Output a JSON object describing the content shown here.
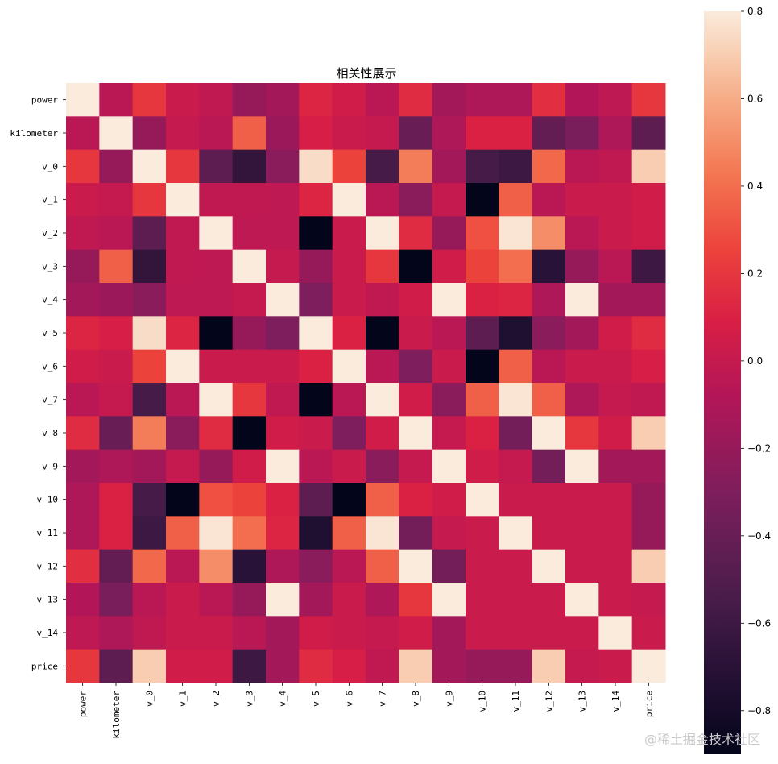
{
  "chart_data": {
    "type": "heatmap",
    "title": "相关性展示",
    "labels": [
      "power",
      "kilometer",
      "v_0",
      "v_1",
      "v_2",
      "v_3",
      "v_4",
      "v_5",
      "v_6",
      "v_7",
      "v_8",
      "v_9",
      "v_10",
      "v_11",
      "v_12",
      "v_13",
      "v_14",
      "price"
    ],
    "vmin": -0.9,
    "vmax": 0.8,
    "colorbar_ticks": [
      0.8,
      0.6,
      0.4,
      0.2,
      0.0,
      -0.2,
      -0.4,
      -0.6,
      -0.8
    ],
    "colorbar_tick_labels": [
      "0.8",
      "0.6",
      "0.4",
      "0.2",
      "0.0",
      "−0.2",
      "−0.4",
      "−0.6",
      "−0.8"
    ],
    "colormap": "rocket",
    "matrix": [
      [
        0.8,
        -0.05,
        0.2,
        0.02,
        -0.02,
        -0.2,
        -0.15,
        0.12,
        0.05,
        -0.05,
        0.15,
        -0.15,
        -0.1,
        -0.1,
        0.16,
        -0.08,
        -0.03,
        0.2
      ],
      [
        -0.05,
        0.8,
        -0.2,
        0.0,
        -0.05,
        0.35,
        -0.18,
        0.08,
        0.02,
        0.0,
        -0.4,
        -0.1,
        0.1,
        0.1,
        -0.42,
        -0.32,
        -0.1,
        -0.45
      ],
      [
        0.2,
        -0.2,
        0.8,
        0.2,
        -0.45,
        -0.65,
        -0.25,
        0.75,
        0.25,
        -0.55,
        0.45,
        -0.15,
        -0.55,
        -0.6,
        0.38,
        -0.05,
        -0.02,
        0.7
      ],
      [
        0.02,
        0.0,
        0.2,
        0.8,
        -0.02,
        -0.02,
        -0.03,
        0.12,
        0.8,
        -0.05,
        -0.25,
        0.0,
        -0.9,
        0.35,
        -0.05,
        0.02,
        0.02,
        0.05
      ],
      [
        -0.02,
        -0.05,
        -0.45,
        -0.02,
        0.8,
        -0.03,
        -0.03,
        -0.9,
        0.02,
        0.8,
        0.15,
        -0.2,
        0.3,
        0.78,
        0.5,
        -0.05,
        0.02,
        0.05
      ],
      [
        -0.2,
        0.35,
        -0.65,
        -0.02,
        -0.03,
        0.8,
        0.0,
        -0.2,
        0.02,
        0.2,
        -0.9,
        0.05,
        0.25,
        0.4,
        -0.7,
        -0.2,
        -0.05,
        -0.6
      ],
      [
        -0.15,
        -0.18,
        -0.25,
        -0.03,
        -0.03,
        0.0,
        0.8,
        -0.3,
        0.02,
        -0.02,
        0.05,
        0.8,
        0.1,
        0.12,
        -0.1,
        0.8,
        -0.15,
        -0.15
      ],
      [
        0.12,
        0.08,
        0.75,
        0.12,
        -0.9,
        -0.2,
        -0.3,
        0.8,
        0.1,
        -0.9,
        0.02,
        -0.05,
        -0.45,
        -0.75,
        -0.25,
        -0.15,
        0.05,
        0.15
      ],
      [
        0.05,
        0.02,
        0.25,
        0.8,
        0.02,
        0.02,
        0.02,
        0.1,
        0.8,
        -0.05,
        -0.3,
        0.02,
        -0.9,
        0.35,
        -0.05,
        0.02,
        0.02,
        0.08
      ],
      [
        -0.05,
        0.0,
        -0.55,
        -0.05,
        0.8,
        0.2,
        -0.02,
        -0.9,
        -0.05,
        0.8,
        0.05,
        -0.25,
        0.35,
        0.78,
        0.35,
        -0.1,
        0.0,
        -0.02
      ],
      [
        0.15,
        -0.4,
        0.45,
        -0.25,
        0.15,
        -0.9,
        0.05,
        0.02,
        -0.3,
        0.05,
        0.8,
        0.0,
        0.1,
        -0.35,
        0.8,
        0.2,
        0.05,
        0.7
      ],
      [
        -0.15,
        -0.1,
        -0.15,
        0.0,
        -0.2,
        0.05,
        0.8,
        -0.05,
        0.02,
        -0.25,
        0.0,
        0.8,
        0.05,
        0.0,
        -0.35,
        0.8,
        -0.15,
        -0.15
      ],
      [
        -0.1,
        0.1,
        -0.55,
        -0.9,
        0.3,
        0.25,
        0.1,
        -0.45,
        -0.9,
        0.35,
        0.1,
        0.05,
        0.8,
        0.02,
        0.02,
        0.02,
        0.02,
        -0.2
      ],
      [
        -0.1,
        0.1,
        -0.6,
        0.35,
        0.78,
        0.4,
        0.12,
        -0.75,
        0.35,
        0.78,
        -0.35,
        0.0,
        0.02,
        0.8,
        0.02,
        0.02,
        0.02,
        -0.2
      ],
      [
        0.16,
        -0.42,
        0.38,
        -0.05,
        0.5,
        -0.7,
        -0.1,
        -0.25,
        -0.05,
        0.35,
        0.8,
        -0.35,
        0.02,
        0.02,
        0.8,
        0.02,
        0.02,
        0.7
      ],
      [
        -0.08,
        -0.32,
        -0.05,
        0.02,
        -0.05,
        -0.2,
        0.8,
        -0.15,
        0.02,
        -0.1,
        0.2,
        0.8,
        0.02,
        0.02,
        0.02,
        0.8,
        0.02,
        0.0
      ],
      [
        -0.03,
        -0.1,
        -0.02,
        0.02,
        0.02,
        -0.05,
        -0.15,
        0.05,
        0.02,
        0.0,
        0.05,
        -0.15,
        0.02,
        0.02,
        0.02,
        0.02,
        0.8,
        0.02
      ],
      [
        0.2,
        -0.45,
        0.7,
        0.05,
        0.05,
        -0.6,
        -0.15,
        0.15,
        0.08,
        -0.02,
        0.7,
        -0.15,
        -0.2,
        -0.2,
        0.7,
        0.0,
        0.02,
        0.8
      ]
    ]
  },
  "watermark": "@稀土掘金技术社区"
}
